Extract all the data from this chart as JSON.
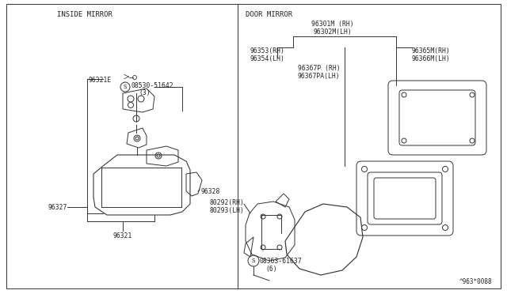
{
  "bg_color": "#ffffff",
  "line_color": "#333333",
  "text_color": "#222222",
  "lw": 0.7,
  "fs": 5.8,
  "inside_mirror_label": "INSIDE MIRROR",
  "door_mirror_label": "DOOR MIRROR",
  "ref_number": "^963*0088"
}
